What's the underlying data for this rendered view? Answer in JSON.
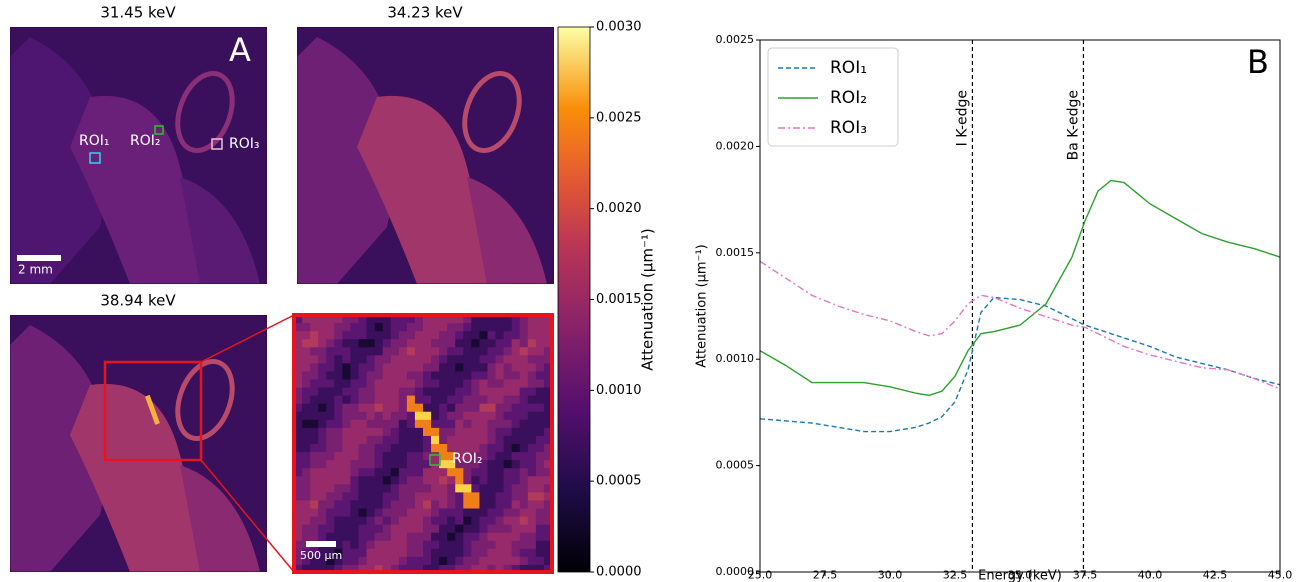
{
  "chart_data": [
    {
      "type": "image-grid",
      "panel_label": "A",
      "images": [
        {
          "title": "31.45 keV"
        },
        {
          "title": "34.23 keV"
        },
        {
          "title": "38.94 keV"
        }
      ],
      "roi_labels": [
        "ROI₁",
        "ROI₂",
        "ROI₃"
      ],
      "zoom_roi_label": "ROI₂",
      "scale_bars": [
        "2 mm",
        "500 μm"
      ],
      "colorbar": {
        "label": "Attenuation (μm⁻¹)",
        "colormap": "inferno",
        "lim": [
          0,
          0.003
        ],
        "ticks": [
          {
            "value": 0,
            "label": "0.0000"
          },
          {
            "value": 0.0005,
            "label": "0.0005"
          },
          {
            "value": 0.001,
            "label": "0.0010"
          },
          {
            "value": 0.0015,
            "label": "0.0015"
          },
          {
            "value": 0.002,
            "label": "0.0020"
          },
          {
            "value": 0.0025,
            "label": "0.0025"
          },
          {
            "value": 0.003,
            "label": "0.0030"
          }
        ]
      }
    },
    {
      "type": "line",
      "panel_label": "B",
      "x_label": "Energy (keV)",
      "y_label": "Attenuation (μm⁻¹)",
      "x": [
        25,
        26,
        27,
        28,
        29,
        30,
        31,
        31.5,
        32,
        32.5,
        33,
        33.5,
        34,
        35,
        36,
        37,
        37.5,
        38,
        38.5,
        39,
        40,
        41,
        42,
        43,
        44,
        45
      ],
      "series": [
        {
          "name": "ROI₁",
          "color": "#1f77b4",
          "dash": "dashed",
          "values": [
            0.00072,
            0.00071,
            0.0007,
            0.00068,
            0.00066,
            0.00066,
            0.00068,
            0.0007,
            0.00073,
            0.0008,
            0.00095,
            0.00122,
            0.00129,
            0.00128,
            0.00125,
            0.00119,
            0.00116,
            0.00114,
            0.00112,
            0.0011,
            0.00106,
            0.00101,
            0.00098,
            0.00095,
            0.00091,
            0.00088
          ]
        },
        {
          "name": "ROI₂",
          "color": "#2ca02c",
          "dash": "solid",
          "values": [
            0.00104,
            0.00097,
            0.00089,
            0.00089,
            0.00089,
            0.00087,
            0.00084,
            0.00083,
            0.00085,
            0.00092,
            0.00104,
            0.00112,
            0.00113,
            0.00116,
            0.00126,
            0.00148,
            0.00165,
            0.00179,
            0.00184,
            0.00183,
            0.00173,
            0.00166,
            0.00159,
            0.00155,
            0.00152,
            0.00148
          ]
        },
        {
          "name": "ROI₃",
          "color": "#e377c2",
          "dash": "dashdot",
          "values": [
            0.00146,
            0.00138,
            0.0013,
            0.00125,
            0.00121,
            0.00118,
            0.00113,
            0.00111,
            0.00112,
            0.00118,
            0.00126,
            0.0013,
            0.00129,
            0.00124,
            0.0012,
            0.00116,
            0.00115,
            0.00112,
            0.00109,
            0.00106,
            0.00102,
            0.00099,
            0.00096,
            0.00095,
            0.00091,
            0.00086
          ]
        }
      ],
      "vlines": [
        {
          "x": 33.17,
          "label": "I K-edge"
        },
        {
          "x": 37.44,
          "label": "Ba K-edge"
        }
      ],
      "xlim": [
        25,
        45
      ],
      "xticks": [
        {
          "value": 25,
          "label": "25.0"
        },
        {
          "value": 27.5,
          "label": "27.5"
        },
        {
          "value": 30,
          "label": "30.0"
        },
        {
          "value": 32.5,
          "label": "32.5"
        },
        {
          "value": 35,
          "label": "35.0"
        },
        {
          "value": 37.5,
          "label": "37.5"
        },
        {
          "value": 40,
          "label": "40.0"
        },
        {
          "value": 42.5,
          "label": "42.5"
        },
        {
          "value": 45,
          "label": "45.0"
        }
      ],
      "ylim": [
        0,
        0.0025
      ],
      "yticks": [
        {
          "value": 0,
          "label": "0.0000"
        },
        {
          "value": 0.0005,
          "label": "0.0005"
        },
        {
          "value": 0.001,
          "label": "0.0010"
        },
        {
          "value": 0.0015,
          "label": "0.0015"
        },
        {
          "value": 0.002,
          "label": "0.0020"
        },
        {
          "value": 0.0025,
          "label": "0.0025"
        }
      ],
      "legend": "upper left",
      "grid": false
    }
  ]
}
